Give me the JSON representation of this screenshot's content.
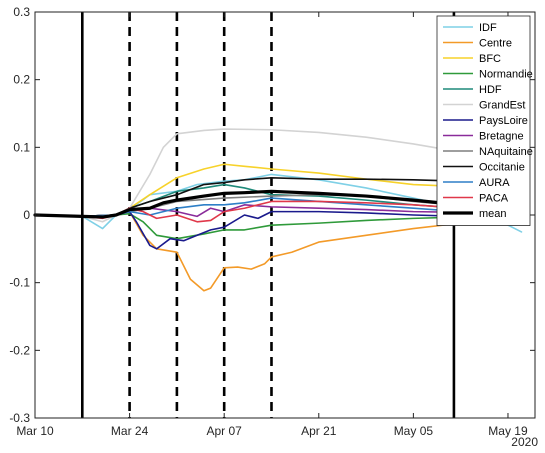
{
  "chart_data": {
    "type": "line",
    "xlim": [
      "2020-03-10",
      "2020-05-23"
    ],
    "ylim": [
      -0.3,
      0.3
    ],
    "x_ticks": [
      "2020-03-10",
      "2020-03-24",
      "2020-04-07",
      "2020-04-21",
      "2020-05-05",
      "2020-05-19"
    ],
    "x_tick_labels": [
      "Mar 10",
      "Mar 24",
      "Apr 07",
      "Apr 21",
      "May 05",
      "May 19"
    ],
    "y_ticks": [
      -0.3,
      -0.2,
      -0.1,
      0,
      0.1,
      0.2,
      0.3
    ],
    "y_tick_labels": [
      "-0.3",
      "-0.2",
      "-0.1",
      "0",
      "0.1",
      "0.2",
      "0.3"
    ],
    "year_label": "2020",
    "grid": false,
    "legend_position": "top-right",
    "solid_vlines": [
      "2020-03-17",
      "2020-05-11"
    ],
    "dashed_vlines": [
      "2020-03-24",
      "2020-03-31",
      "2020-04-07",
      "2020-04-14"
    ],
    "series": [
      {
        "name": "IDF",
        "color": "#7fd0e6",
        "width": 1.6,
        "points": [
          [
            "2020-03-10",
            0.0
          ],
          [
            "2020-03-17",
            -0.002
          ],
          [
            "2020-03-20",
            -0.02
          ],
          [
            "2020-03-22",
            0.0
          ],
          [
            "2020-03-24",
            0.008
          ],
          [
            "2020-03-27",
            0.03
          ],
          [
            "2020-03-31",
            0.035
          ],
          [
            "2020-04-03",
            0.045
          ],
          [
            "2020-04-07",
            0.05
          ],
          [
            "2020-04-10",
            0.052
          ],
          [
            "2020-04-14",
            0.06
          ],
          [
            "2020-04-21",
            0.052
          ],
          [
            "2020-04-28",
            0.04
          ],
          [
            "2020-05-05",
            0.025
          ],
          [
            "2020-05-12",
            0.01
          ],
          [
            "2020-05-19",
            -0.015
          ],
          [
            "2020-05-21",
            -0.025
          ]
        ]
      },
      {
        "name": "Centre",
        "color": "#f39a28",
        "width": 1.6,
        "points": [
          [
            "2020-03-10",
            0.0
          ],
          [
            "2020-03-17",
            -0.002
          ],
          [
            "2020-03-22",
            0.0
          ],
          [
            "2020-03-24",
            0.005
          ],
          [
            "2020-03-26",
            -0.03
          ],
          [
            "2020-03-28",
            -0.05
          ],
          [
            "2020-03-31",
            -0.055
          ],
          [
            "2020-04-02",
            -0.095
          ],
          [
            "2020-04-04",
            -0.112
          ],
          [
            "2020-04-05",
            -0.108
          ],
          [
            "2020-04-07",
            -0.078
          ],
          [
            "2020-04-09",
            -0.077
          ],
          [
            "2020-04-11",
            -0.08
          ],
          [
            "2020-04-13",
            -0.072
          ],
          [
            "2020-04-14",
            -0.062
          ],
          [
            "2020-04-17",
            -0.055
          ],
          [
            "2020-04-21",
            -0.04
          ],
          [
            "2020-04-28",
            -0.03
          ],
          [
            "2020-05-05",
            -0.02
          ],
          [
            "2020-05-12",
            -0.012
          ],
          [
            "2020-05-19",
            -0.006
          ],
          [
            "2020-05-21",
            -0.005
          ]
        ]
      },
      {
        "name": "BFC",
        "color": "#f7d22a",
        "width": 1.6,
        "points": [
          [
            "2020-03-10",
            0.0
          ],
          [
            "2020-03-17",
            -0.002
          ],
          [
            "2020-03-22",
            0.0
          ],
          [
            "2020-03-24",
            0.01
          ],
          [
            "2020-03-27",
            0.03
          ],
          [
            "2020-03-31",
            0.055
          ],
          [
            "2020-04-04",
            0.068
          ],
          [
            "2020-04-07",
            0.075
          ],
          [
            "2020-04-10",
            0.072
          ],
          [
            "2020-04-14",
            0.068
          ],
          [
            "2020-04-21",
            0.062
          ],
          [
            "2020-04-28",
            0.053
          ],
          [
            "2020-05-05",
            0.045
          ],
          [
            "2020-05-12",
            0.042
          ],
          [
            "2020-05-19",
            0.038
          ],
          [
            "2020-05-21",
            0.037
          ]
        ]
      },
      {
        "name": "Normandie",
        "color": "#2f9a3a",
        "width": 1.6,
        "points": [
          [
            "2020-03-10",
            0.0
          ],
          [
            "2020-03-17",
            -0.002
          ],
          [
            "2020-03-22",
            0.0
          ],
          [
            "2020-03-24",
            0.002
          ],
          [
            "2020-03-26",
            -0.01
          ],
          [
            "2020-03-28",
            -0.03
          ],
          [
            "2020-03-31",
            -0.035
          ],
          [
            "2020-04-04",
            -0.028
          ],
          [
            "2020-04-07",
            -0.022
          ],
          [
            "2020-04-10",
            -0.022
          ],
          [
            "2020-04-14",
            -0.015
          ],
          [
            "2020-04-21",
            -0.012
          ],
          [
            "2020-04-28",
            -0.008
          ],
          [
            "2020-05-05",
            -0.005
          ],
          [
            "2020-05-12",
            -0.003
          ],
          [
            "2020-05-19",
            -0.002
          ],
          [
            "2020-05-21",
            -0.002
          ]
        ]
      },
      {
        "name": "HDF",
        "color": "#1f8a7a",
        "width": 1.6,
        "points": [
          [
            "2020-03-10",
            0.0
          ],
          [
            "2020-03-17",
            -0.002
          ],
          [
            "2020-03-22",
            0.0
          ],
          [
            "2020-03-24",
            0.01
          ],
          [
            "2020-03-27",
            0.02
          ],
          [
            "2020-03-31",
            0.035
          ],
          [
            "2020-04-04",
            0.04
          ],
          [
            "2020-04-07",
            0.045
          ],
          [
            "2020-04-10",
            0.04
          ],
          [
            "2020-04-14",
            0.03
          ],
          [
            "2020-04-21",
            0.028
          ],
          [
            "2020-04-28",
            0.022
          ],
          [
            "2020-05-05",
            0.015
          ],
          [
            "2020-05-12",
            0.01
          ],
          [
            "2020-05-19",
            0.005
          ],
          [
            "2020-05-21",
            0.004
          ]
        ]
      },
      {
        "name": "GrandEst",
        "color": "#d3d3d3",
        "width": 1.6,
        "points": [
          [
            "2020-03-10",
            0.0
          ],
          [
            "2020-03-17",
            -0.002
          ],
          [
            "2020-03-20",
            -0.01
          ],
          [
            "2020-03-22",
            0.0
          ],
          [
            "2020-03-24",
            0.01
          ],
          [
            "2020-03-27",
            0.06
          ],
          [
            "2020-03-29",
            0.1
          ],
          [
            "2020-03-31",
            0.12
          ],
          [
            "2020-04-04",
            0.125
          ],
          [
            "2020-04-07",
            0.127
          ],
          [
            "2020-04-14",
            0.126
          ],
          [
            "2020-04-21",
            0.122
          ],
          [
            "2020-04-28",
            0.115
          ],
          [
            "2020-05-05",
            0.105
          ],
          [
            "2020-05-12",
            0.093
          ],
          [
            "2020-05-19",
            0.085
          ],
          [
            "2020-05-21",
            0.083
          ]
        ]
      },
      {
        "name": "PaysLoire",
        "color": "#1a1a8c",
        "width": 1.6,
        "points": [
          [
            "2020-03-10",
            0.0
          ],
          [
            "2020-03-17",
            -0.002
          ],
          [
            "2020-03-22",
            0.0
          ],
          [
            "2020-03-24",
            0.005
          ],
          [
            "2020-03-25",
            -0.01
          ],
          [
            "2020-03-27",
            -0.045
          ],
          [
            "2020-03-28",
            -0.05
          ],
          [
            "2020-03-30",
            -0.035
          ],
          [
            "2020-04-01",
            -0.038
          ],
          [
            "2020-04-03",
            -0.03
          ],
          [
            "2020-04-05",
            -0.022
          ],
          [
            "2020-04-07",
            -0.018
          ],
          [
            "2020-04-10",
            0.0
          ],
          [
            "2020-04-12",
            -0.005
          ],
          [
            "2020-04-14",
            0.005
          ],
          [
            "2020-04-21",
            0.005
          ],
          [
            "2020-04-28",
            0.003
          ],
          [
            "2020-05-05",
            0.0
          ],
          [
            "2020-05-12",
            -0.002
          ],
          [
            "2020-05-19",
            -0.004
          ],
          [
            "2020-05-21",
            -0.005
          ]
        ]
      },
      {
        "name": "Bretagne",
        "color": "#8a2b9a",
        "width": 1.6,
        "points": [
          [
            "2020-03-10",
            0.0
          ],
          [
            "2020-03-17",
            -0.002
          ],
          [
            "2020-03-22",
            0.0
          ],
          [
            "2020-03-24",
            0.005
          ],
          [
            "2020-03-27",
            0.01
          ],
          [
            "2020-03-31",
            0.005
          ],
          [
            "2020-04-03",
            -0.002
          ],
          [
            "2020-04-05",
            0.01
          ],
          [
            "2020-04-07",
            0.005
          ],
          [
            "2020-04-10",
            0.015
          ],
          [
            "2020-04-14",
            0.012
          ],
          [
            "2020-04-21",
            0.01
          ],
          [
            "2020-04-28",
            0.008
          ],
          [
            "2020-05-05",
            0.005
          ],
          [
            "2020-05-12",
            0.004
          ],
          [
            "2020-05-19",
            0.004
          ],
          [
            "2020-05-21",
            0.004
          ]
        ]
      },
      {
        "name": "NAquitaine",
        "color": "#7f7f7f",
        "width": 1.6,
        "points": [
          [
            "2020-03-10",
            0.0
          ],
          [
            "2020-03-17",
            -0.002
          ],
          [
            "2020-03-22",
            0.0
          ],
          [
            "2020-03-24",
            0.005
          ],
          [
            "2020-03-27",
            0.01
          ],
          [
            "2020-03-31",
            0.02
          ],
          [
            "2020-04-07",
            0.025
          ],
          [
            "2020-04-14",
            0.028
          ],
          [
            "2020-04-21",
            0.03
          ],
          [
            "2020-04-28",
            0.028
          ],
          [
            "2020-05-05",
            0.02
          ],
          [
            "2020-05-12",
            0.014
          ],
          [
            "2020-05-19",
            0.01
          ],
          [
            "2020-05-21",
            0.009
          ]
        ]
      },
      {
        "name": "Occitanie",
        "color": "#111111",
        "width": 1.6,
        "points": [
          [
            "2020-03-10",
            0.0
          ],
          [
            "2020-03-17",
            -0.002
          ],
          [
            "2020-03-22",
            0.0
          ],
          [
            "2020-03-24",
            0.01
          ],
          [
            "2020-03-27",
            0.02
          ],
          [
            "2020-03-31",
            0.03
          ],
          [
            "2020-04-04",
            0.045
          ],
          [
            "2020-04-07",
            0.048
          ],
          [
            "2020-04-10",
            0.052
          ],
          [
            "2020-04-14",
            0.055
          ],
          [
            "2020-04-21",
            0.053
          ],
          [
            "2020-04-28",
            0.053
          ],
          [
            "2020-05-05",
            0.052
          ],
          [
            "2020-05-12",
            0.05
          ],
          [
            "2020-05-19",
            0.048
          ],
          [
            "2020-05-21",
            0.047
          ]
        ]
      },
      {
        "name": "AURA",
        "color": "#2e7fc7",
        "width": 1.6,
        "points": [
          [
            "2020-03-10",
            0.0
          ],
          [
            "2020-03-17",
            -0.002
          ],
          [
            "2020-03-22",
            0.0
          ],
          [
            "2020-03-24",
            0.005
          ],
          [
            "2020-03-27",
            0.0
          ],
          [
            "2020-03-31",
            0.01
          ],
          [
            "2020-04-04",
            0.015
          ],
          [
            "2020-04-07",
            0.015
          ],
          [
            "2020-04-10",
            0.018
          ],
          [
            "2020-04-14",
            0.025
          ],
          [
            "2020-04-21",
            0.02
          ],
          [
            "2020-04-28",
            0.015
          ],
          [
            "2020-05-05",
            0.01
          ],
          [
            "2020-05-12",
            0.005
          ],
          [
            "2020-05-19",
            0.0
          ],
          [
            "2020-05-21",
            -0.002
          ]
        ]
      },
      {
        "name": "PACA",
        "color": "#e0384a",
        "width": 1.6,
        "points": [
          [
            "2020-03-10",
            0.0
          ],
          [
            "2020-03-17",
            -0.002
          ],
          [
            "2020-03-20",
            -0.005
          ],
          [
            "2020-03-22",
            0.0
          ],
          [
            "2020-03-24",
            0.01
          ],
          [
            "2020-03-26",
            0.005
          ],
          [
            "2020-03-28",
            -0.005
          ],
          [
            "2020-03-31",
            0.0
          ],
          [
            "2020-04-03",
            -0.01
          ],
          [
            "2020-04-05",
            -0.008
          ],
          [
            "2020-04-07",
            0.005
          ],
          [
            "2020-04-10",
            0.01
          ],
          [
            "2020-04-14",
            0.02
          ],
          [
            "2020-04-21",
            0.02
          ],
          [
            "2020-04-28",
            0.018
          ],
          [
            "2020-05-05",
            0.015
          ],
          [
            "2020-05-12",
            0.01
          ],
          [
            "2020-05-19",
            0.008
          ],
          [
            "2020-05-21",
            0.007
          ]
        ]
      },
      {
        "name": "mean",
        "color": "#000000",
        "width": 3.2,
        "points": [
          [
            "2020-03-10",
            0.0
          ],
          [
            "2020-03-17",
            -0.002
          ],
          [
            "2020-03-20",
            -0.003
          ],
          [
            "2020-03-22",
            0.0
          ],
          [
            "2020-03-24",
            0.008
          ],
          [
            "2020-03-27",
            0.01
          ],
          [
            "2020-03-29",
            0.018
          ],
          [
            "2020-03-31",
            0.022
          ],
          [
            "2020-04-04",
            0.028
          ],
          [
            "2020-04-07",
            0.032
          ],
          [
            "2020-04-10",
            0.033
          ],
          [
            "2020-04-14",
            0.035
          ],
          [
            "2020-04-21",
            0.032
          ],
          [
            "2020-04-28",
            0.028
          ],
          [
            "2020-05-05",
            0.022
          ],
          [
            "2020-05-12",
            0.015
          ],
          [
            "2020-05-19",
            0.01
          ],
          [
            "2020-05-21",
            0.008
          ]
        ]
      }
    ]
  }
}
